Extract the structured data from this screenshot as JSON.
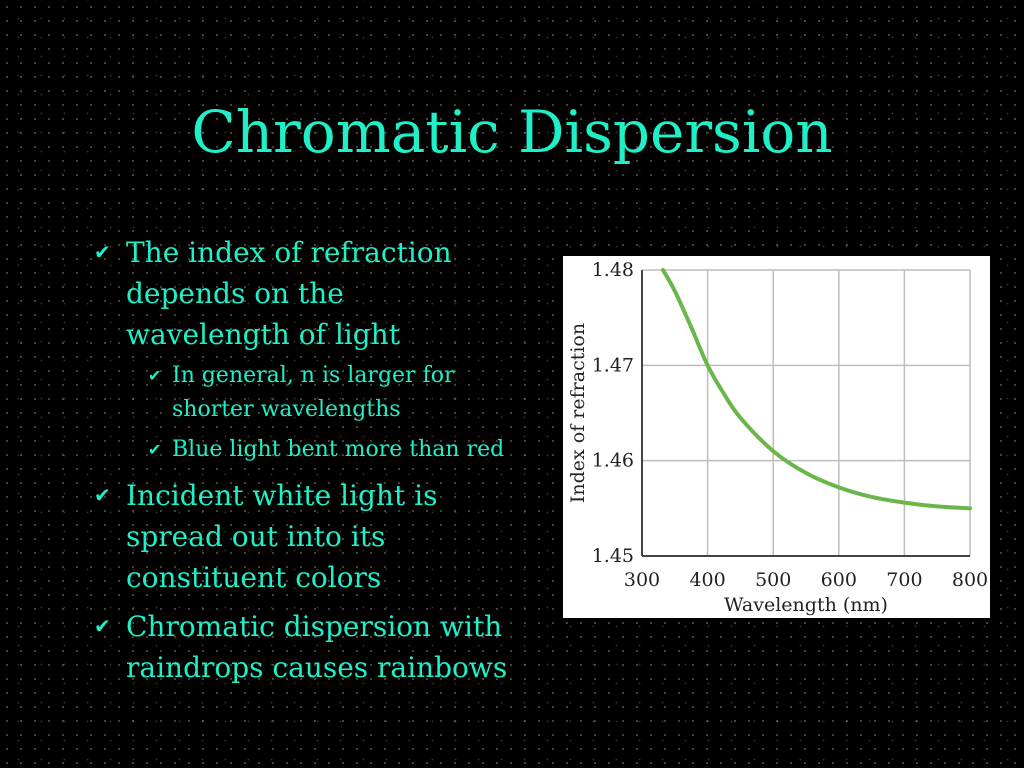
{
  "slide": {
    "title": "Chromatic Dispersion",
    "bullets": [
      {
        "text": "The index of refraction depends on the wavelength of light",
        "sub": [
          "In general, n is larger for shorter wavelengths",
          "Blue light bent more than red"
        ]
      },
      {
        "text": "Incident white light is spread out into its constituent colors"
      },
      {
        "text": "Chromatic dispersion with raindrops causes rainbows"
      }
    ],
    "colors": {
      "text": "#1ff0c8",
      "background": "#000000",
      "curve": "#6ab64a"
    }
  },
  "chart_data": {
    "type": "line",
    "xlabel": "Wavelength (nm)",
    "ylabel": "Index of refraction",
    "xlim": [
      300,
      800
    ],
    "ylim": [
      1.45,
      1.48
    ],
    "x_ticks": [
      "300",
      "400",
      "500",
      "600",
      "700",
      "800"
    ],
    "y_ticks": [
      "1.45",
      "1.46",
      "1.47",
      "1.48"
    ],
    "grid": true,
    "series": [
      {
        "x": [
          332,
          350,
          375,
          400,
          425,
          450,
          500,
          550,
          600,
          650,
          700,
          750,
          800
        ],
        "y": [
          1.48,
          1.4778,
          1.474,
          1.47,
          1.467,
          1.4645,
          1.461,
          1.4587,
          1.4572,
          1.4562,
          1.4556,
          1.4552,
          1.455
        ]
      }
    ]
  }
}
